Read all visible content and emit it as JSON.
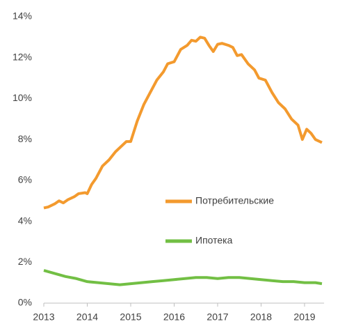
{
  "chart_data": {
    "type": "line",
    "ylim": [
      0,
      14
    ],
    "yticks": [
      {
        "value": 0,
        "label": "0%"
      },
      {
        "value": 2,
        "label": "2%"
      },
      {
        "value": 4,
        "label": "4%"
      },
      {
        "value": 6,
        "label": "6%"
      },
      {
        "value": 8,
        "label": "8%"
      },
      {
        "value": 10,
        "label": "10%"
      },
      {
        "value": 12,
        "label": "12%"
      },
      {
        "value": 14,
        "label": "14%"
      }
    ],
    "xlim": [
      2013,
      2019.45
    ],
    "xticks": [
      2013,
      2014,
      2015,
      2016,
      2017,
      2018,
      2019
    ],
    "grid": false,
    "legend_position": "center",
    "series": [
      {
        "name": "Потребительские",
        "color": "#f39a2e",
        "x": [
          2013.0,
          2013.1,
          2013.25,
          2013.35,
          2013.45,
          2013.55,
          2013.7,
          2013.8,
          2013.95,
          2014.0,
          2014.1,
          2014.2,
          2014.35,
          2014.5,
          2014.65,
          2014.8,
          2014.9,
          2015.0,
          2015.15,
          2015.3,
          2015.45,
          2015.6,
          2015.75,
          2015.85,
          2016.0,
          2016.15,
          2016.3,
          2016.4,
          2016.5,
          2016.6,
          2016.7,
          2016.8,
          2016.9,
          2017.0,
          2017.1,
          2017.25,
          2017.35,
          2017.45,
          2017.55,
          2017.7,
          2017.85,
          2017.95,
          2018.1,
          2018.25,
          2018.4,
          2018.55,
          2018.7,
          2018.85,
          2018.95,
          2019.05,
          2019.15,
          2019.25,
          2019.4
        ],
        "values": [
          4.65,
          4.7,
          4.85,
          5.0,
          4.9,
          5.05,
          5.2,
          5.35,
          5.4,
          5.35,
          5.8,
          6.1,
          6.7,
          7.0,
          7.4,
          7.7,
          7.9,
          7.9,
          8.9,
          9.7,
          10.3,
          10.9,
          11.3,
          11.7,
          11.8,
          12.4,
          12.6,
          12.85,
          12.8,
          13.0,
          12.95,
          12.6,
          12.3,
          12.65,
          12.7,
          12.6,
          12.5,
          12.1,
          12.15,
          11.7,
          11.4,
          11.0,
          10.9,
          10.3,
          9.8,
          9.5,
          9.0,
          8.7,
          8.0,
          8.5,
          8.3,
          8.0,
          7.85
        ]
      },
      {
        "name": "Ипотека",
        "color": "#72bf44",
        "x": [
          2013.0,
          2013.25,
          2013.5,
          2013.75,
          2014.0,
          2014.25,
          2014.5,
          2014.75,
          2015.0,
          2015.25,
          2015.5,
          2015.75,
          2016.0,
          2016.25,
          2016.5,
          2016.75,
          2017.0,
          2017.25,
          2017.5,
          2017.75,
          2018.0,
          2018.25,
          2018.5,
          2018.75,
          2019.0,
          2019.25,
          2019.4
        ],
        "values": [
          1.6,
          1.45,
          1.3,
          1.2,
          1.05,
          1.0,
          0.95,
          0.9,
          0.95,
          1.0,
          1.05,
          1.1,
          1.15,
          1.2,
          1.25,
          1.25,
          1.2,
          1.25,
          1.25,
          1.2,
          1.15,
          1.1,
          1.05,
          1.05,
          1.0,
          1.0,
          0.95
        ]
      }
    ]
  }
}
